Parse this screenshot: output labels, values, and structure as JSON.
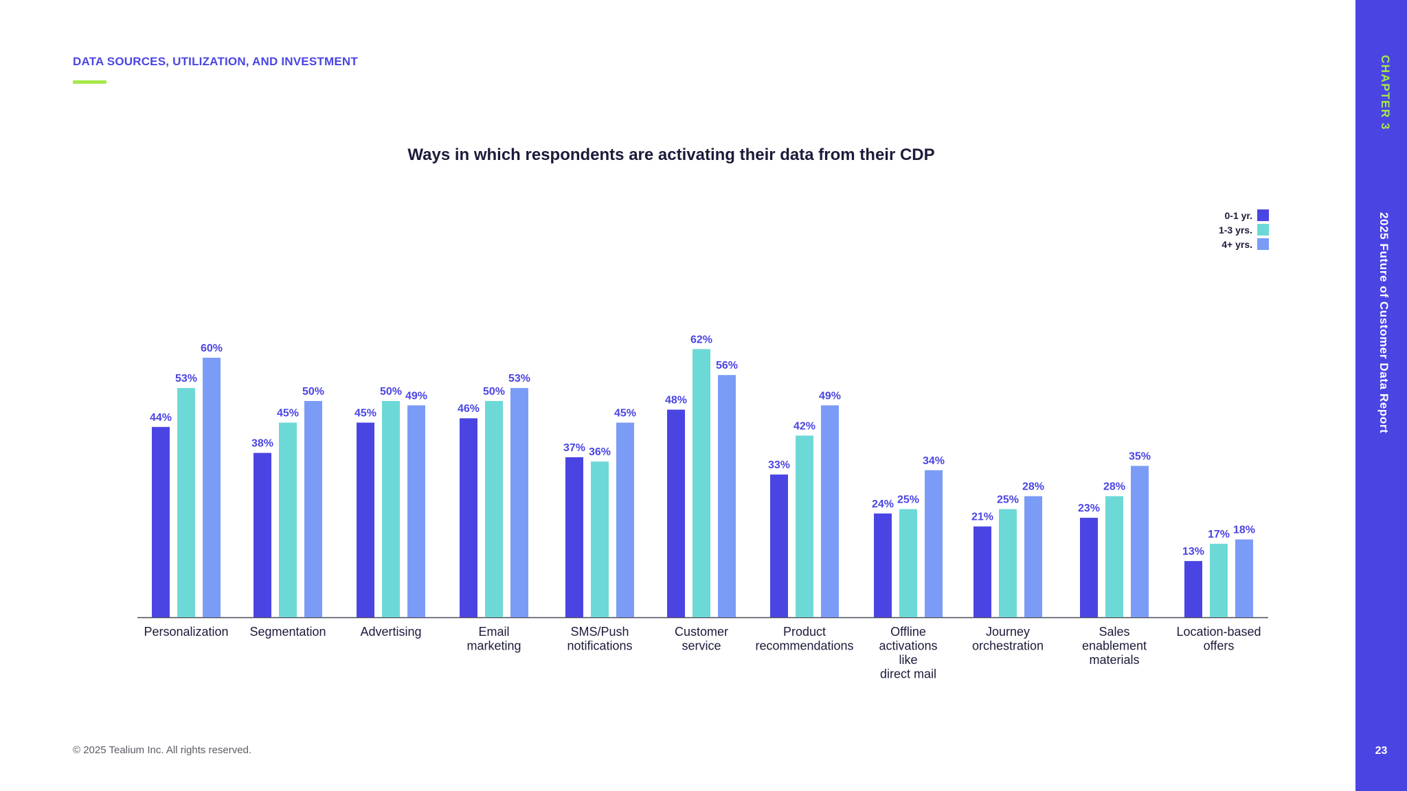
{
  "header": {
    "section_title": "DATA SOURCES, UTILIZATION, AND INVESTMENT"
  },
  "sidebar": {
    "chapter": "CHAPTER 3",
    "report_title": "2025 Future of Customer Data Report",
    "page_number": "23"
  },
  "footer": {
    "copyright": "© 2025 Tealium Inc. All rights reserved."
  },
  "colors": {
    "accent": "#4a45e2",
    "green_accent": "#a6e84a",
    "series_0_1": "#4a45e2",
    "series_1_3": "#6dd9d6",
    "series_4_plus": "#7b9cf6"
  },
  "chart_data": {
    "type": "bar",
    "title": "Ways in which respondents are activating their data from their CDP",
    "xlabel": "",
    "ylabel": "",
    "ylim": [
      0,
      70
    ],
    "grid": false,
    "legend_position": "top-right",
    "categories": [
      [
        "Personalization"
      ],
      [
        "Segmentation"
      ],
      [
        "Advertising"
      ],
      [
        "Email",
        "marketing"
      ],
      [
        "SMS/Push",
        "notifications"
      ],
      [
        "Customer",
        "service"
      ],
      [
        "Product",
        "recommendations"
      ],
      [
        "Offline",
        "activations",
        "like",
        "direct mail"
      ],
      [
        "Journey",
        "orchestration"
      ],
      [
        "Sales",
        "enablement",
        "materials"
      ],
      [
        "Location-based",
        "offers"
      ]
    ],
    "series": [
      {
        "name": "0-1 yr.",
        "color": "#4a45e2",
        "values": [
          44,
          38,
          45,
          46,
          37,
          48,
          33,
          24,
          21,
          23,
          13
        ]
      },
      {
        "name": "1-3 yrs.",
        "color": "#6dd9d6",
        "values": [
          53,
          45,
          50,
          50,
          36,
          62,
          42,
          25,
          25,
          28,
          17
        ]
      },
      {
        "name": "4+ yrs.",
        "color": "#7b9cf6",
        "values": [
          60,
          50,
          49,
          53,
          45,
          56,
          49,
          34,
          28,
          35,
          18
        ]
      }
    ],
    "value_suffix": "%"
  }
}
